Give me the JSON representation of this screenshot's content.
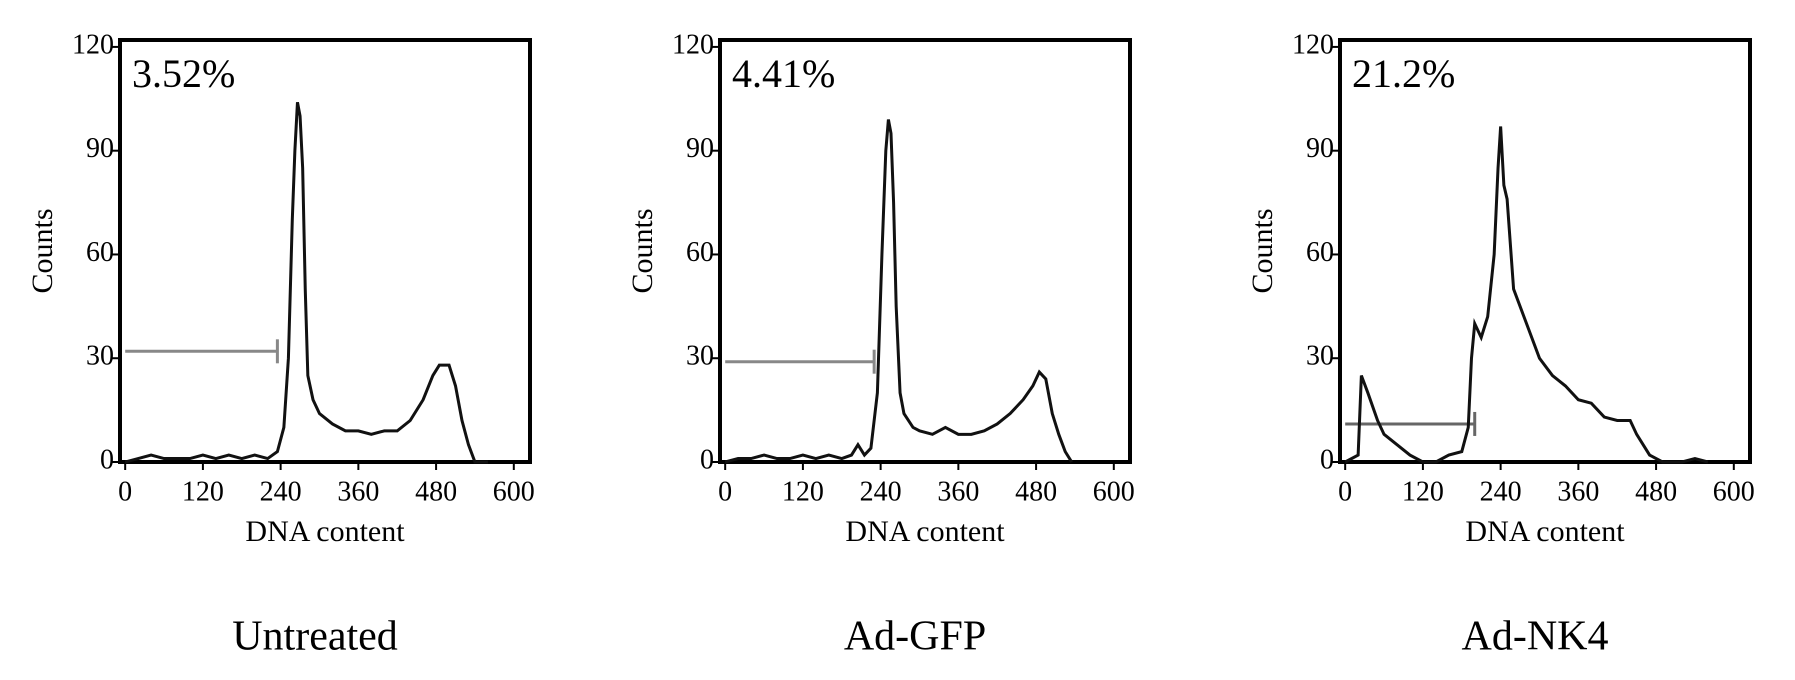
{
  "chart_data": [
    {
      "type": "line",
      "annotation": "3.52%",
      "xlabel": "DNA content",
      "ylabel": "Counts",
      "caption": "Untreated",
      "xlim": [
        -8,
        625
      ],
      "ylim": [
        0,
        122
      ],
      "xticks": [
        0,
        120,
        240,
        360,
        480,
        600
      ],
      "yticks": [
        0,
        30,
        60,
        90,
        120
      ],
      "color": "#111111",
      "gate": {
        "x": [
          0,
          235
        ],
        "y": 32,
        "color": "#888888"
      },
      "x": [
        0,
        20,
        40,
        60,
        80,
        100,
        120,
        140,
        160,
        180,
        200,
        220,
        235,
        245,
        252,
        258,
        262,
        266,
        270,
        274,
        278,
        282,
        290,
        300,
        320,
        340,
        360,
        380,
        400,
        420,
        440,
        460,
        475,
        485,
        500,
        510,
        520,
        530,
        540,
        560
      ],
      "values": [
        0,
        1,
        2,
        1,
        1,
        1,
        2,
        1,
        2,
        1,
        2,
        1,
        3,
        10,
        30,
        70,
        90,
        104,
        100,
        85,
        50,
        25,
        18,
        14,
        11,
        9,
        9,
        8,
        9,
        9,
        12,
        18,
        25,
        28,
        28,
        22,
        12,
        5,
        0,
        0
      ]
    },
    {
      "type": "line",
      "annotation": "4.41%",
      "xlabel": "DNA content",
      "ylabel": "Counts",
      "caption": "Ad-GFP",
      "xlim": [
        -8,
        625
      ],
      "ylim": [
        0,
        122
      ],
      "xticks": [
        0,
        120,
        240,
        360,
        480,
        600
      ],
      "yticks": [
        0,
        30,
        60,
        90,
        120
      ],
      "color": "#111111",
      "gate": {
        "x": [
          0,
          230
        ],
        "y": 29,
        "color": "#888888"
      },
      "x": [
        0,
        20,
        40,
        60,
        80,
        100,
        120,
        140,
        160,
        180,
        195,
        205,
        215,
        225,
        235,
        242,
        248,
        252,
        256,
        260,
        264,
        270,
        276,
        290,
        300,
        320,
        340,
        360,
        380,
        400,
        420,
        440,
        460,
        475,
        485,
        495,
        505,
        515,
        525,
        535
      ],
      "values": [
        0,
        1,
        1,
        2,
        1,
        1,
        2,
        1,
        2,
        1,
        2,
        5,
        2,
        4,
        20,
        60,
        90,
        99,
        95,
        75,
        45,
        20,
        14,
        10,
        9,
        8,
        10,
        8,
        8,
        9,
        11,
        14,
        18,
        22,
        26,
        24,
        14,
        8,
        3,
        0
      ]
    },
    {
      "type": "line",
      "annotation": "21.2%",
      "xlabel": "DNA content",
      "ylabel": "Counts",
      "caption": "Ad-NK4",
      "xlim": [
        -8,
        625
      ],
      "ylim": [
        0,
        122
      ],
      "xticks": [
        0,
        120,
        240,
        360,
        480,
        600
      ],
      "yticks": [
        0,
        30,
        60,
        90,
        120
      ],
      "color": "#111111",
      "gate": {
        "x": [
          0,
          200
        ],
        "y": 11,
        "color": "#666666"
      },
      "x": [
        0,
        20,
        25,
        35,
        50,
        60,
        80,
        100,
        120,
        140,
        160,
        180,
        190,
        195,
        200,
        210,
        220,
        230,
        236,
        240,
        245,
        250,
        260,
        280,
        300,
        320,
        340,
        360,
        380,
        400,
        420,
        440,
        450,
        470,
        490,
        520,
        540,
        560
      ],
      "values": [
        0,
        2,
        25,
        20,
        12,
        8,
        5,
        2,
        0,
        0,
        2,
        3,
        10,
        30,
        40,
        36,
        42,
        60,
        85,
        97,
        80,
        76,
        50,
        40,
        30,
        25,
        22,
        18,
        17,
        13,
        12,
        12,
        8,
        2,
        0,
        0,
        1,
        0
      ]
    }
  ]
}
